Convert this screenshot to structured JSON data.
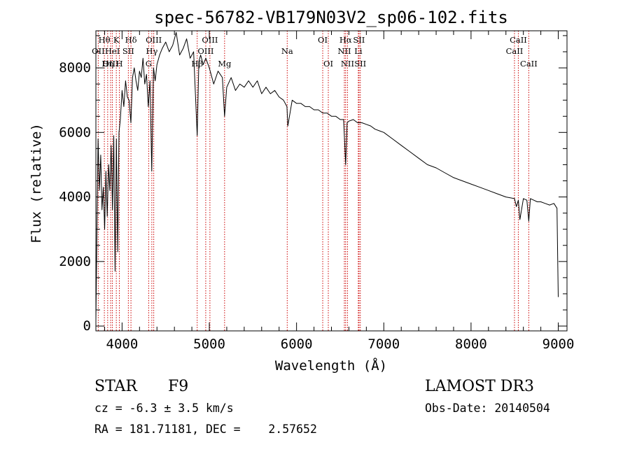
{
  "chart_data": {
    "type": "line",
    "title": "spec-56782-VB179N03V2_sp06-102.fits",
    "xlabel": "Wavelength (Å)",
    "ylabel": "Flux (relative)",
    "xlim": [
      3700,
      9100
    ],
    "ylim": [
      -150,
      9150
    ],
    "x_ticks": [
      4000,
      5000,
      6000,
      7000,
      8000,
      9000
    ],
    "x_tick_labels": [
      "4000",
      "5000",
      "6000",
      "7000",
      "8000",
      "9000"
    ],
    "y_ticks": [
      0,
      2000,
      4000,
      6000,
      8000
    ],
    "y_tick_labels": [
      "0",
      "2000",
      "4000",
      "6000",
      "8000"
    ],
    "series": [
      {
        "name": "flux",
        "x": [
          3700,
          3712,
          3725,
          3740,
          3755,
          3770,
          3785,
          3800,
          3815,
          3830,
          3845,
          3860,
          3875,
          3890,
          3905,
          3920,
          3935,
          3950,
          3965,
          3980,
          4000,
          4020,
          4040,
          4060,
          4080,
          4101,
          4120,
          4140,
          4160,
          4180,
          4200,
          4220,
          4240,
          4260,
          4280,
          4300,
          4320,
          4340,
          4360,
          4380,
          4400,
          4430,
          4460,
          4500,
          4540,
          4580,
          4620,
          4660,
          4700,
          4740,
          4780,
          4820,
          4861,
          4880,
          4900,
          4930,
          4960,
          5000,
          5050,
          5100,
          5150,
          5175,
          5200,
          5250,
          5300,
          5350,
          5400,
          5450,
          5500,
          5550,
          5600,
          5650,
          5700,
          5750,
          5800,
          5850,
          5890,
          5900,
          5950,
          6000,
          6050,
          6100,
          6150,
          6200,
          6250,
          6300,
          6350,
          6400,
          6450,
          6500,
          6540,
          6563,
          6580,
          6600,
          6650,
          6700,
          6750,
          6800,
          6850,
          6900,
          6950,
          7000,
          7100,
          7200,
          7300,
          7400,
          7500,
          7600,
          7700,
          7800,
          7900,
          8000,
          8100,
          8200,
          8300,
          8400,
          8498,
          8520,
          8542,
          8560,
          8600,
          8640,
          8662,
          8680,
          8720,
          8760,
          8800,
          8850,
          8900,
          8950,
          8985,
          8995,
          9000
        ],
        "values": [
          200,
          3000,
          5800,
          4200,
          5300,
          3600,
          4300,
          3000,
          4800,
          3400,
          5000,
          4200,
          5600,
          3600,
          5900,
          1700,
          5800,
          2300,
          6000,
          6400,
          7300,
          6800,
          7600,
          7100,
          7000,
          6300,
          7700,
          8000,
          7600,
          7300,
          7900,
          7700,
          8300,
          7500,
          7800,
          6800,
          7600,
          4800,
          8000,
          7600,
          8100,
          8400,
          8600,
          8800,
          8500,
          8700,
          9100,
          8400,
          8600,
          8900,
          8300,
          8500,
          5900,
          8200,
          8400,
          8100,
          8300,
          8000,
          7500,
          7900,
          7700,
          6500,
          7400,
          7700,
          7300,
          7500,
          7400,
          7600,
          7400,
          7600,
          7200,
          7400,
          7200,
          7300,
          7100,
          7000,
          6800,
          6200,
          7000,
          6900,
          6900,
          6800,
          6800,
          6700,
          6700,
          6600,
          6600,
          6500,
          6500,
          6400,
          6400,
          5000,
          6300,
          6350,
          6400,
          6300,
          6300,
          6250,
          6200,
          6100,
          6050,
          6000,
          5800,
          5600,
          5400,
          5200,
          5000,
          4900,
          4750,
          4600,
          4500,
          4400,
          4300,
          4200,
          4100,
          4000,
          3950,
          3700,
          3900,
          3300,
          3950,
          3900,
          3250,
          3950,
          3900,
          3850,
          3850,
          3800,
          3750,
          3800,
          3650,
          1800,
          900
        ]
      }
    ],
    "line_markers": [
      {
        "label": "Hθ",
        "wavelength": 3797,
        "row": 1
      },
      {
        "label": "OII",
        "wavelength": 3727,
        "row": 2
      },
      {
        "label": "OIII",
        "wavelength": 3869,
        "row": 3
      },
      {
        "label": "HeI",
        "wavelength": 3889,
        "row": 2
      },
      {
        "label": "K",
        "wavelength": 3934,
        "row": 1
      },
      {
        "label": "Hη",
        "wavelength": 3835,
        "row": 3
      },
      {
        "label": "H",
        "wavelength": 3969,
        "row": 3
      },
      {
        "label": "SII",
        "wavelength": 4072,
        "row": 2
      },
      {
        "label": "Hδ",
        "wavelength": 4102,
        "row": 1
      },
      {
        "label": "OIII",
        "wavelength": 4363,
        "row": 1
      },
      {
        "label": "Hγ",
        "wavelength": 4341,
        "row": 2
      },
      {
        "label": "G",
        "wavelength": 4305,
        "row": 3
      },
      {
        "label": "OIII",
        "wavelength": 5007,
        "row": 1
      },
      {
        "label": "OIII",
        "wavelength": 4959,
        "row": 2
      },
      {
        "label": "Hβ",
        "wavelength": 4861,
        "row": 3
      },
      {
        "label": "Mg",
        "wavelength": 5175,
        "row": 3
      },
      {
        "label": "Na",
        "wavelength": 5893,
        "row": 2
      },
      {
        "label": "OI",
        "wavelength": 6300,
        "row": 1
      },
      {
        "label": "OI",
        "wavelength": 6364,
        "row": 3
      },
      {
        "label": "Hα",
        "wavelength": 6563,
        "row": 1
      },
      {
        "label": "SII",
        "wavelength": 6716,
        "row": 1
      },
      {
        "label": "NII",
        "wavelength": 6548,
        "row": 2
      },
      {
        "label": "Li",
        "wavelength": 6708,
        "row": 2
      },
      {
        "label": "NII",
        "wavelength": 6584,
        "row": 3
      },
      {
        "label": "SII",
        "wavelength": 6731,
        "row": 3
      },
      {
        "label": "CaII",
        "wavelength": 8542,
        "row": 1
      },
      {
        "label": "CaII",
        "wavelength": 8498,
        "row": 2
      },
      {
        "label": "CaII",
        "wavelength": 8662,
        "row": 3
      }
    ],
    "colors": {
      "spectrum": "#000000",
      "markers": "#cc0000",
      "frame": "#000000"
    }
  },
  "info": {
    "object_class": "STAR",
    "subclass": "F9",
    "survey": "LAMOST DR3",
    "cz": "cz = -6.3 ± 3.5 km/s",
    "obs_date": "Obs-Date: 20140504",
    "coords": "RA = 181.71181, DEC =    2.57652"
  }
}
